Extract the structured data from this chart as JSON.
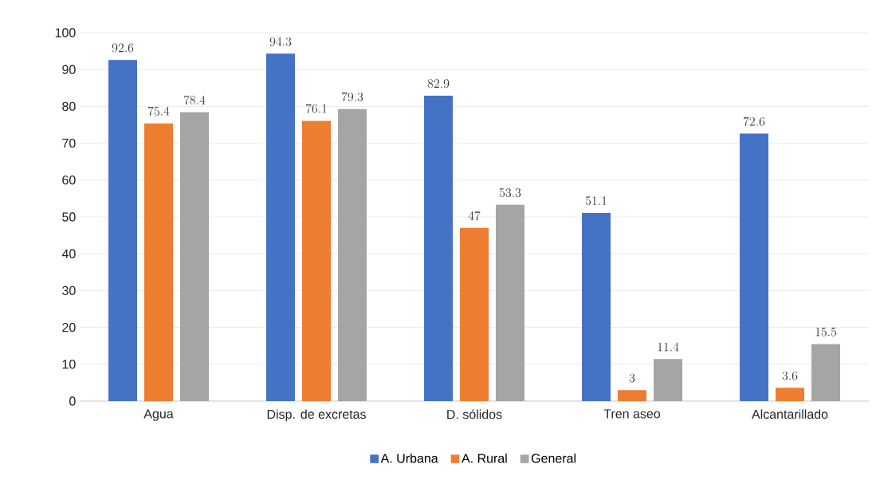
{
  "chart_data": {
    "type": "bar",
    "categories": [
      "Agua",
      "Disp. de excretas",
      "D. sólidos",
      "Tren aseo",
      "Alcantarillado"
    ],
    "series": [
      {
        "name": "A. Urbana",
        "color": "#4472c4",
        "values": [
          92.6,
          94.3,
          82.9,
          51.1,
          72.6
        ]
      },
      {
        "name": "A. Rural",
        "color": "#ed7d31",
        "values": [
          75.4,
          76.1,
          47,
          3,
          3.6
        ]
      },
      {
        "name": "General",
        "color": "#a5a5a5",
        "values": [
          78.4,
          79.3,
          53.3,
          11.4,
          15.5
        ]
      }
    ],
    "ylim": [
      0,
      100
    ],
    "yticks": [
      0,
      10,
      20,
      30,
      40,
      50,
      60,
      70,
      80,
      90,
      100
    ],
    "grid": "y",
    "legend": "bottom",
    "data_labels": true
  }
}
